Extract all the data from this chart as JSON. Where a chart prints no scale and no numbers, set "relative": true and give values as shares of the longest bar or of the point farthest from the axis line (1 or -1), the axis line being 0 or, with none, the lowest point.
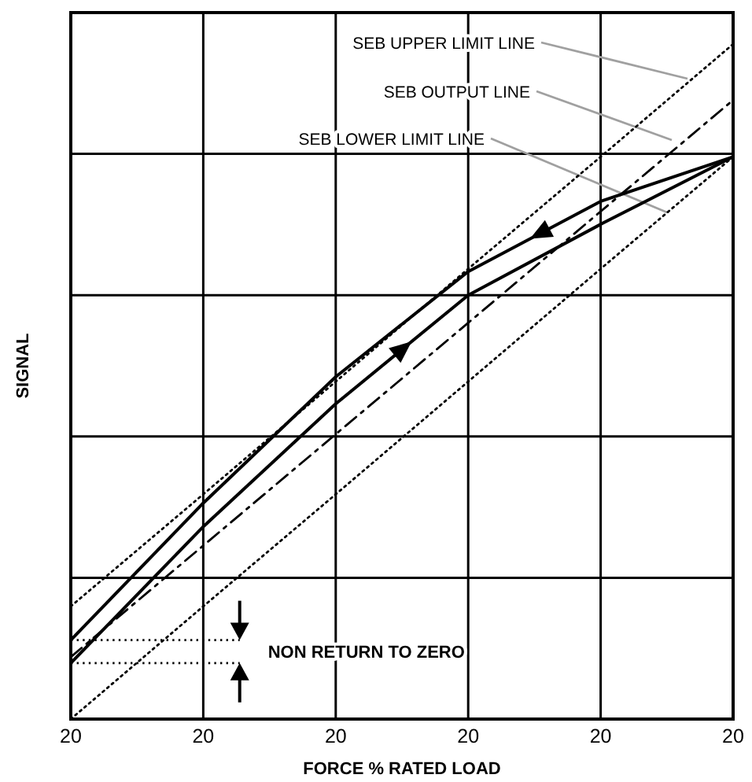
{
  "chart_data": {
    "type": "line",
    "xlabel": "FORCE % RATED LOAD",
    "ylabel": "SIGNAL",
    "relative": true,
    "categories": [
      "20",
      "20",
      "20",
      "20",
      "20",
      "20"
    ],
    "grid": true,
    "marker": "none",
    "series": [
      {
        "color": "#000000",
        "line_style": "dotted",
        "values": [
          0.167,
          0.333,
          0.5,
          0.667,
          0.833,
          1.0
        ]
      },
      {
        "color": "#000000",
        "line_style": "dashed",
        "values": [
          0.092,
          0.257,
          0.422,
          0.587,
          0.752,
          0.917
        ]
      },
      {
        "color": "#000000",
        "line_style": "dotted",
        "values": [
          0,
          0.167,
          0.333,
          0.5,
          0.667,
          0.833
        ]
      },
      {
        "color": "#000000",
        "line_style": "solid",
        "values": [
          0.083,
          0.285,
          0.467,
          0.628,
          0.733,
          0.833
        ]
      },
      {
        "color": "#000000",
        "line_style": "solid",
        "values": [
          0.117,
          0.32,
          0.507,
          0.663,
          0.767,
          0.833
        ]
      }
    ],
    "ref_lines": [
      {
        "axis": "y",
        "value": 0.117,
        "line_style": "dotted"
      },
      {
        "axis": "y",
        "value": 0.083,
        "line_style": "dotted"
      }
    ],
    "annotations": [
      "SEB  UPPER LIMIT LINE",
      "SEB  OUTPUT LINE",
      "SEB  LOWER LIMIT LINE",
      "NON RETURN TO ZERO"
    ]
  }
}
